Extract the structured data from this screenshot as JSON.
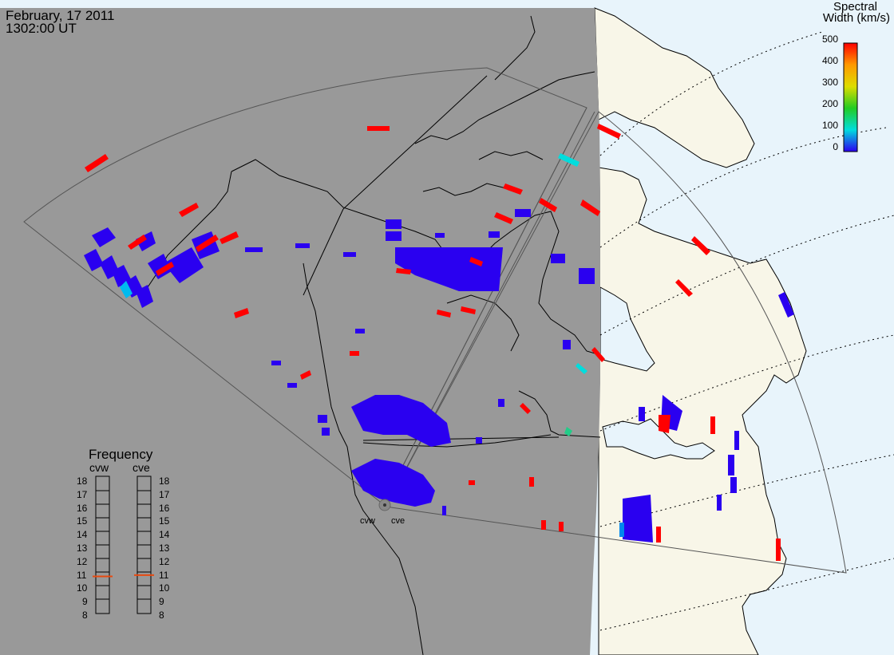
{
  "header": {
    "date": "February, 17 2011",
    "time": "1302:00 UT"
  },
  "colorbar": {
    "title_line1": "Spectral",
    "title_line2": "Width (km/s)",
    "ticks": [
      "500",
      "400",
      "300",
      "200",
      "100",
      "0"
    ],
    "range": [
      0,
      500
    ],
    "colors": [
      "#ff0000",
      "#ff9900",
      "#dddd00",
      "#22cc22",
      "#00dddd",
      "#0055ff",
      "#2a00f0"
    ]
  },
  "frequency_panel": {
    "title": "Frequency",
    "radars": [
      "cvw",
      "cve"
    ],
    "ticks": [
      "18",
      "17",
      "16",
      "15",
      "14",
      "13",
      "12",
      "11",
      "10",
      "9",
      "8"
    ],
    "current_mhz": {
      "cvw": 10.7,
      "cve": 10.8
    },
    "marker_color": "#e84a10"
  },
  "sites": {
    "west": "cvw",
    "east": "cve"
  },
  "map_colors": {
    "night": "#999999",
    "land": "#f8f6e8",
    "ocean": "#e8f4fb",
    "coast": "#000000",
    "fov": "#666666"
  }
}
